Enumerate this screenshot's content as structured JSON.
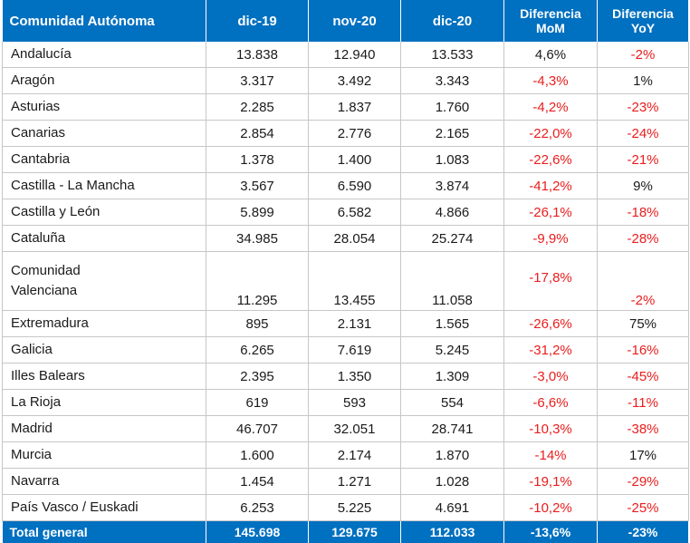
{
  "table": {
    "headers": [
      "Comunidad Autónoma",
      "dic-19",
      "nov-20",
      "dic-20",
      "Diferencia\nMoM",
      "Diferencia\nYoY"
    ],
    "rows": [
      {
        "name": "Andalucía",
        "dic19": "13.838",
        "nov20": "12.940",
        "dic20": "13.533",
        "mom": "4,6%",
        "yoy": "-2%"
      },
      {
        "name": "Aragón",
        "dic19": "3.317",
        "nov20": "3.492",
        "dic20": "3.343",
        "mom": "-4,3%",
        "yoy": "1%"
      },
      {
        "name": "Asturias",
        "dic19": "2.285",
        "nov20": "1.837",
        "dic20": "1.760",
        "mom": "-4,2%",
        "yoy": "-23%"
      },
      {
        "name": "Canarias",
        "dic19": "2.854",
        "nov20": "2.776",
        "dic20": "2.165",
        "mom": "-22,0%",
        "yoy": "-24%"
      },
      {
        "name": "Cantabria",
        "dic19": "1.378",
        "nov20": "1.400",
        "dic20": "1.083",
        "mom": "-22,6%",
        "yoy": "-21%"
      },
      {
        "name": "Castilla - La Mancha",
        "dic19": "3.567",
        "nov20": "6.590",
        "dic20": "3.874",
        "mom": "-41,2%",
        "yoy": "9%"
      },
      {
        "name": "Castilla y León",
        "dic19": "5.899",
        "nov20": "6.582",
        "dic20": "4.866",
        "mom": "-26,1%",
        "yoy": "-18%"
      },
      {
        "name": "Cataluña",
        "dic19": "34.985",
        "nov20": "28.054",
        "dic20": "25.274",
        "mom": "-9,9%",
        "yoy": "-28%"
      },
      {
        "name": "Comunidad\nValenciana",
        "dic19": "11.295",
        "nov20": "13.455",
        "dic20": "11.058",
        "mom": "-17,8%",
        "yoy": "-2%"
      },
      {
        "name": "Extremadura",
        "dic19": "895",
        "nov20": "2.131",
        "dic20": "1.565",
        "mom": "-26,6%",
        "yoy": "75%"
      },
      {
        "name": "Galicia",
        "dic19": "6.265",
        "nov20": "7.619",
        "dic20": "5.245",
        "mom": "-31,2%",
        "yoy": "-16%"
      },
      {
        "name": "Illes Balears",
        "dic19": "2.395",
        "nov20": "1.350",
        "dic20": "1.309",
        "mom": "-3,0%",
        "yoy": "-45%"
      },
      {
        "name": "La Rioja",
        "dic19": "619",
        "nov20": "593",
        "dic20": "554",
        "mom": "-6,6%",
        "yoy": "-11%"
      },
      {
        "name": "Madrid",
        "dic19": "46.707",
        "nov20": "32.051",
        "dic20": "28.741",
        "mom": "-10,3%",
        "yoy": "-38%"
      },
      {
        "name": "Murcia",
        "dic19": "1.600",
        "nov20": "2.174",
        "dic20": "1.870",
        "mom": "-14%",
        "yoy": "17%"
      },
      {
        "name": "Navarra",
        "dic19": "1.454",
        "nov20": "1.271",
        "dic20": "1.028",
        "mom": "-19,1%",
        "yoy": "-29%"
      },
      {
        "name": "País Vasco / Euskadi",
        "dic19": "6.253",
        "nov20": "5.225",
        "dic20": "4.691",
        "mom": "-10,2%",
        "yoy": "-25%"
      }
    ],
    "total": {
      "name": "Total general",
      "dic19": "145.698",
      "nov20": "129.675",
      "dic20": "112.033",
      "mom": "-13,6%",
      "yoy": "-23%"
    }
  },
  "colors": {
    "header_bg": "#0070c0",
    "header_text": "#ffffff",
    "negative": "#ea1d1d",
    "grid": "#c7c7c7"
  }
}
